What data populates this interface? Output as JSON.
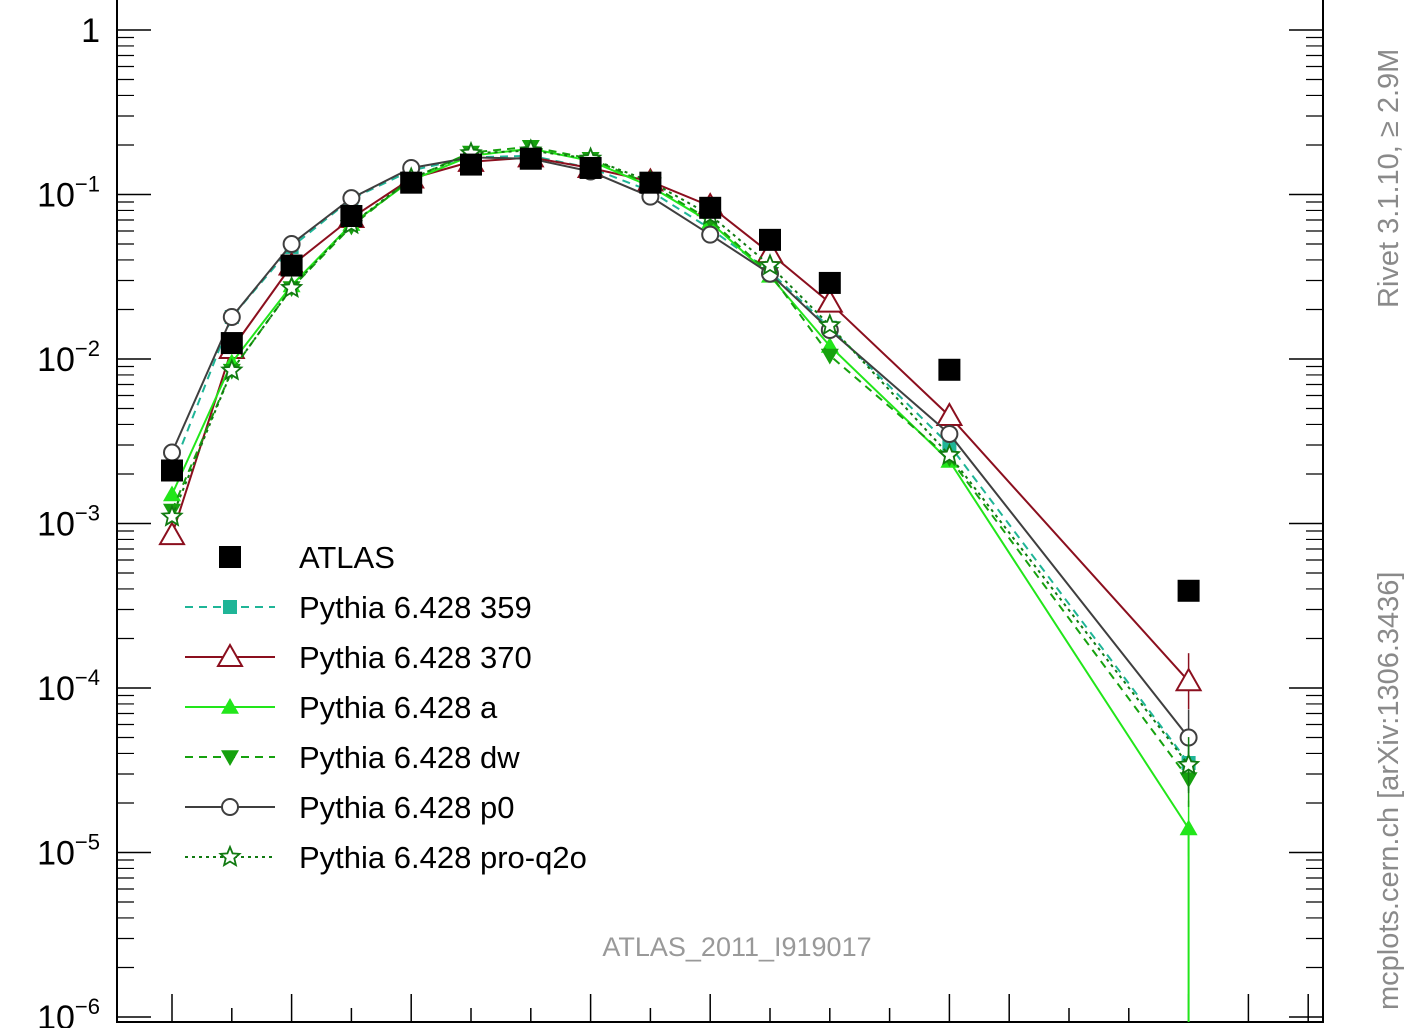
{
  "chart_data": {
    "type": "line",
    "title": "",
    "xlabel": "",
    "ylabel": "",
    "y_scale": "log",
    "ylim": [
      1e-06,
      2.0
    ],
    "xlim": [
      0,
      20
    ],
    "grid": false,
    "legend_placement": "bottom-left",
    "y_tick_labels": [
      {
        "value": 1,
        "base": "1",
        "exp": ""
      },
      {
        "value": 0.1,
        "base": "10",
        "exp": "−1"
      },
      {
        "value": 0.01,
        "base": "10",
        "exp": "−2"
      },
      {
        "value": 0.001,
        "base": "10",
        "exp": "−3"
      },
      {
        "value": 0.0001,
        "base": "10",
        "exp": "−4"
      },
      {
        "value": 1e-05,
        "base": "10",
        "exp": "−5"
      },
      {
        "value": 1e-06,
        "base": "10",
        "exp": "−6"
      }
    ],
    "x": [
      1,
      2,
      3,
      4,
      5,
      6,
      7,
      8,
      9,
      10,
      11,
      12,
      14,
      18
    ],
    "series": [
      {
        "name": "ATLAS",
        "marker": "square-filled",
        "line": "none",
        "color": "#000000",
        "values": [
          0.0021,
          0.0125,
          0.037,
          0.074,
          0.118,
          0.152,
          0.165,
          0.145,
          0.118,
          0.083,
          0.053,
          0.029,
          0.0086,
          0.00039
        ]
      },
      {
        "name": "Pythia 6.428 359",
        "marker": "square-small",
        "line": "dashed",
        "color": "#1fb597",
        "values": [
          0.0021,
          0.018,
          0.048,
          0.094,
          0.14,
          0.168,
          0.172,
          0.145,
          0.105,
          0.062,
          0.034,
          0.0155,
          0.003,
          3.5e-05
        ]
      },
      {
        "name": "Pythia 6.428 370",
        "marker": "triangle-open",
        "line": "solid",
        "color": "#8b0f1e",
        "values": [
          0.00085,
          0.0115,
          0.037,
          0.072,
          0.125,
          0.158,
          0.168,
          0.145,
          0.12,
          0.085,
          0.044,
          0.022,
          0.0045,
          0.00011
        ]
      },
      {
        "name": "Pythia 6.428 a",
        "marker": "triangle-filled",
        "line": "solid",
        "color": "#22e61a",
        "values": [
          0.0015,
          0.0095,
          0.028,
          0.066,
          0.122,
          0.172,
          0.19,
          0.16,
          0.112,
          0.068,
          0.032,
          0.012,
          0.0024,
          1.4e-05
        ]
      },
      {
        "name": "Pythia 6.428 dw",
        "marker": "triangle-down-filled",
        "line": "dashed",
        "color": "#16a10e",
        "values": [
          0.0012,
          0.0085,
          0.027,
          0.064,
          0.125,
          0.18,
          0.195,
          0.165,
          0.115,
          0.07,
          0.033,
          0.0105,
          0.0025,
          2.8e-05
        ]
      },
      {
        "name": "Pythia 6.428 p0",
        "marker": "circle-open",
        "line": "solid",
        "color": "#3f3f3f",
        "values": [
          0.0027,
          0.018,
          0.05,
          0.095,
          0.145,
          0.168,
          0.165,
          0.138,
          0.097,
          0.057,
          0.033,
          0.015,
          0.0035,
          5e-05
        ]
      },
      {
        "name": "Pythia 6.428 pro-q2o",
        "marker": "star-open",
        "line": "dotted",
        "color": "#117a11",
        "values": [
          0.0011,
          0.0085,
          0.027,
          0.066,
          0.125,
          0.178,
          0.185,
          0.165,
          0.12,
          0.075,
          0.037,
          0.016,
          0.0026,
          3.4e-05
        ]
      }
    ],
    "annotations": {
      "analysis": "ATLAS_2011_I919017",
      "side_label": "mcplots.cern.ch [arXiv:1306.3436]",
      "side_label_top": "Rivet 3.1.10, ≥ 2.9M"
    }
  }
}
